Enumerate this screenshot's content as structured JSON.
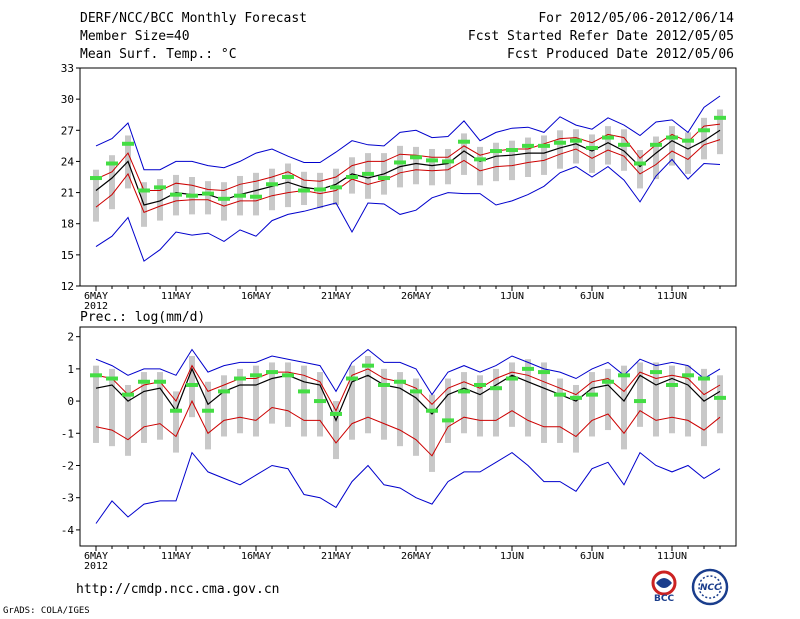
{
  "header": {
    "title": "DERF/NCC/BCC Monthly Forecast",
    "member_size": "Member Size=40",
    "variable": "Mean Surf. Temp.: °C",
    "period": "For 2012/05/06-2012/06/14",
    "fcst_started": "Fcst Started Refer Date 2012/05/05",
    "fcst_produced": "Fcst Produced Date 2012/05/06"
  },
  "footer": {
    "url": "http://cmdp.ncc.cma.gov.cn",
    "grads": "GrADS: COLA/IGES",
    "logo_bcc": "BCC",
    "logo_ncc": "NCC"
  },
  "colors": {
    "ensemble_mean": "#000000",
    "envelope": "#0000cc",
    "spread": "#cc0000",
    "bar": "#c8c8c8",
    "member_mark": "#44dd44"
  },
  "chart_data": [
    {
      "type": "line",
      "title": "Mean Surf. Temp.: °C",
      "x_tick_labels": [
        "6MAY\n2012",
        "11MAY",
        "16MAY",
        "21MAY",
        "26MAY",
        "1JUN",
        "6JUN",
        "11JUN"
      ],
      "x_tick_index": [
        0,
        5,
        10,
        15,
        20,
        26,
        31,
        36
      ],
      "days": 40,
      "ylim": [
        12,
        33
      ],
      "yticks": [
        12,
        15,
        18,
        21,
        24,
        27,
        30,
        33
      ],
      "series": [
        {
          "name": "ensemble_mean",
          "values": [
            21.2,
            22.4,
            24.0,
            19.8,
            20.2,
            21.0,
            20.8,
            20.8,
            20.3,
            20.8,
            21.2,
            21.6,
            22.0,
            21.5,
            21.3,
            21.8,
            22.8,
            22.4,
            22.8,
            23.5,
            23.8,
            23.6,
            23.8,
            25.0,
            24.0,
            24.5,
            24.6,
            24.8,
            24.8,
            25.3,
            25.7,
            25.0,
            25.8,
            25.0,
            23.5,
            24.8,
            26.0,
            25.2,
            26.0,
            27.0
          ]
        },
        {
          "name": "upper_envelope",
          "values": [
            25.5,
            26.2,
            27.7,
            23.2,
            23.2,
            24.0,
            24.0,
            23.6,
            23.4,
            24.0,
            24.8,
            25.2,
            24.5,
            23.9,
            23.9,
            24.9,
            26.0,
            25.6,
            25.5,
            26.8,
            27.0,
            26.3,
            26.4,
            27.9,
            26.0,
            26.8,
            27.2,
            27.3,
            26.8,
            28.3,
            27.5,
            27.1,
            28.2,
            27.5,
            26.5,
            27.8,
            28.0,
            26.8,
            29.2,
            30.3
          ]
        },
        {
          "name": "lower_envelope",
          "values": [
            15.8,
            16.8,
            18.6,
            14.4,
            15.5,
            17.2,
            16.9,
            17.1,
            16.3,
            17.4,
            16.8,
            18.3,
            18.9,
            19.2,
            19.6,
            20.0,
            17.2,
            20.0,
            19.9,
            18.9,
            19.3,
            20.5,
            21.0,
            20.9,
            20.9,
            19.8,
            20.2,
            20.8,
            21.6,
            22.9,
            23.5,
            22.5,
            23.5,
            22.2,
            20.1,
            22.6,
            24.2,
            22.3,
            23.8,
            23.7
          ]
        },
        {
          "name": "upper_spread",
          "values": [
            22.3,
            23.0,
            24.8,
            21.2,
            21.2,
            21.9,
            21.7,
            21.3,
            21.2,
            21.8,
            22.1,
            22.5,
            23.0,
            22.2,
            22.1,
            22.5,
            23.6,
            24.0,
            24.0,
            24.7,
            24.6,
            24.4,
            24.4,
            25.5,
            24.6,
            25.0,
            25.2,
            25.2,
            25.7,
            26.2,
            26.3,
            25.8,
            26.6,
            26.3,
            24.3,
            25.6,
            26.6,
            25.9,
            27.4,
            27.6
          ]
        },
        {
          "name": "lower_spread",
          "values": [
            19.6,
            20.8,
            22.8,
            19.1,
            19.7,
            20.2,
            20.3,
            20.3,
            19.7,
            20.2,
            20.2,
            20.7,
            21.0,
            21.2,
            20.9,
            21.2,
            22.3,
            21.8,
            22.2,
            22.9,
            23.2,
            23.1,
            23.2,
            24.1,
            23.1,
            23.5,
            23.6,
            23.9,
            24.1,
            24.7,
            25.2,
            24.3,
            25.1,
            24.5,
            22.8,
            23.7,
            25.0,
            24.2,
            25.6,
            26.1
          ]
        },
        {
          "name": "member_mark",
          "values": [
            22.4,
            23.8,
            25.7,
            21.2,
            21.5,
            20.8,
            20.7,
            20.9,
            20.4,
            20.7,
            20.6,
            21.8,
            22.5,
            21.2,
            21.3,
            21.5,
            22.5,
            22.8,
            22.4,
            23.9,
            24.4,
            24.1,
            24.0,
            25.9,
            24.2,
            25.0,
            25.1,
            25.5,
            25.5,
            25.8,
            26.0,
            25.3,
            26.3,
            25.6,
            23.8,
            25.6,
            26.3,
            26.0,
            27.0,
            28.2
          ]
        }
      ]
    },
    {
      "type": "line",
      "title": "Prec.: log(mm/d)",
      "x_tick_labels": [
        "6MAY\n2012",
        "11MAY",
        "16MAY",
        "21MAY",
        "26MAY",
        "1JUN",
        "6JUN",
        "11JUN"
      ],
      "x_tick_index": [
        0,
        5,
        10,
        15,
        20,
        26,
        31,
        36
      ],
      "days": 40,
      "ylim": [
        -4.5,
        2.3
      ],
      "yticks": [
        -4,
        -3,
        -2,
        -1,
        0,
        1,
        2
      ],
      "series": [
        {
          "name": "ensemble_mean",
          "values": [
            0.4,
            0.5,
            0.0,
            0.3,
            0.4,
            -0.3,
            1.0,
            -0.1,
            0.3,
            0.5,
            0.5,
            0.7,
            0.8,
            0.6,
            0.5,
            -0.6,
            0.6,
            0.8,
            0.5,
            0.4,
            0.1,
            -0.4,
            0.2,
            0.4,
            0.2,
            0.5,
            0.8,
            0.6,
            0.4,
            0.2,
            0.0,
            0.4,
            0.5,
            0.0,
            0.8,
            0.5,
            0.7,
            0.5,
            0.0,
            0.3
          ]
        },
        {
          "name": "upper_envelope",
          "values": [
            1.3,
            1.1,
            0.8,
            1.0,
            1.0,
            0.8,
            1.6,
            0.9,
            1.1,
            1.2,
            1.2,
            1.4,
            1.3,
            1.2,
            1.1,
            0.3,
            1.2,
            1.6,
            1.2,
            1.2,
            1.0,
            0.2,
            0.9,
            1.1,
            0.9,
            1.1,
            1.4,
            1.2,
            1.0,
            0.9,
            0.7,
            1.0,
            1.2,
            0.8,
            1.3,
            1.1,
            1.2,
            1.1,
            0.7,
            1.0
          ]
        },
        {
          "name": "lower_envelope",
          "values": [
            -3.8,
            -3.1,
            -3.6,
            -3.2,
            -3.1,
            -3.1,
            -1.6,
            -2.2,
            -2.4,
            -2.6,
            -2.3,
            -2.0,
            -2.1,
            -2.9,
            -3.0,
            -3.3,
            -2.5,
            -2.0,
            -2.6,
            -2.7,
            -3.0,
            -3.2,
            -2.5,
            -2.2,
            -2.2,
            -1.9,
            -1.6,
            -2.0,
            -2.5,
            -2.5,
            -2.8,
            -2.1,
            -1.9,
            -2.6,
            -1.6,
            -2.0,
            -2.2,
            -2.0,
            -2.4,
            -2.1
          ]
        },
        {
          "name": "upper_spread",
          "values": [
            0.8,
            0.7,
            0.2,
            0.5,
            0.6,
            0.0,
            1.1,
            0.3,
            0.5,
            0.7,
            0.7,
            0.9,
            0.9,
            0.8,
            0.6,
            -0.3,
            0.8,
            1.0,
            0.7,
            0.6,
            0.4,
            -0.1,
            0.4,
            0.6,
            0.4,
            0.7,
            0.9,
            0.8,
            0.6,
            0.4,
            0.2,
            0.6,
            0.7,
            0.3,
            0.9,
            0.7,
            0.8,
            0.7,
            0.2,
            0.5
          ]
        },
        {
          "name": "lower_spread",
          "values": [
            -0.8,
            -0.9,
            -1.2,
            -0.8,
            -0.7,
            -1.1,
            0.0,
            -1.0,
            -0.6,
            -0.5,
            -0.6,
            -0.2,
            -0.3,
            -0.6,
            -0.6,
            -1.3,
            -0.7,
            -0.5,
            -0.7,
            -0.9,
            -1.2,
            -1.7,
            -0.8,
            -0.5,
            -0.6,
            -0.6,
            -0.3,
            -0.6,
            -0.8,
            -0.8,
            -1.1,
            -0.6,
            -0.4,
            -1.0,
            -0.3,
            -0.6,
            -0.5,
            -0.6,
            -0.9,
            -0.5
          ]
        },
        {
          "name": "member_mark",
          "values": [
            0.8,
            0.7,
            0.2,
            0.6,
            0.6,
            -0.3,
            0.5,
            -0.3,
            0.3,
            0.7,
            0.8,
            0.9,
            0.8,
            0.3,
            0.0,
            -0.4,
            0.7,
            1.1,
            0.5,
            0.6,
            0.3,
            -0.3,
            -0.6,
            0.3,
            0.5,
            0.4,
            0.7,
            1.0,
            0.9,
            0.2,
            0.1,
            0.2,
            0.6,
            0.8,
            0.0,
            0.9,
            0.5,
            0.8,
            0.7,
            0.1
          ]
        }
      ]
    }
  ]
}
